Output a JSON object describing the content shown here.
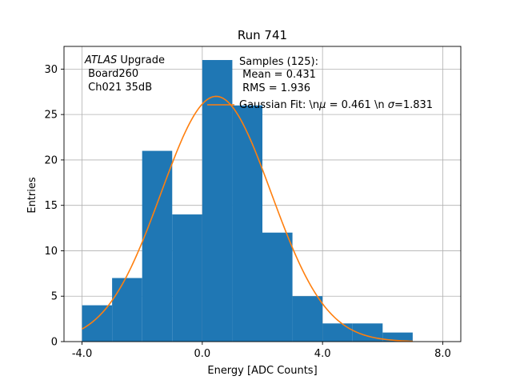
{
  "chart_data": {
    "type": "bar",
    "title": "Run 741",
    "xlabel": "Energy [ADC Counts]",
    "ylabel": "Entries",
    "xlim": [
      -4.6,
      8.6
    ],
    "ylim": [
      0,
      32.5
    ],
    "xticks": [
      -4,
      0,
      4,
      8
    ],
    "xtick_labels": [
      "-4.0",
      "0.0",
      "4.0",
      "8.0"
    ],
    "yticks": [
      0,
      5,
      10,
      15,
      20,
      25,
      30
    ],
    "ytick_labels": [
      "0",
      "5",
      "10",
      "15",
      "20",
      "25",
      "30"
    ],
    "grid": true,
    "bin_edges": [
      -4,
      -3,
      -2,
      -1,
      0,
      1,
      2,
      3,
      4,
      5,
      6,
      7
    ],
    "values": [
      4,
      7,
      21,
      14,
      31,
      26,
      12,
      5,
      2,
      2,
      1
    ],
    "bar_color": "#1f77b4",
    "fit": {
      "type": "gaussian",
      "mu": 0.461,
      "sigma": 1.831,
      "peak": 27,
      "x_range": [
        -4,
        7
      ],
      "color": "#ff7f0e"
    },
    "annotations": {
      "atlas_word": "ATLAS",
      "upgrade_word": " Upgrade",
      "board": " Board260",
      "channel": " Ch021 35dB"
    },
    "legend": {
      "samples_line1": "Samples (125):",
      "samples_line2": " Mean = 0.431",
      "samples_line3": " RMS = 1.936",
      "fit_label": "Gaussian Fit: \\n",
      "fit_mu_sym": "μ",
      "fit_mu_val": " = 0.461 \\n ",
      "fit_sigma_sym": "σ",
      "fit_sigma_val": "=1.831"
    }
  }
}
